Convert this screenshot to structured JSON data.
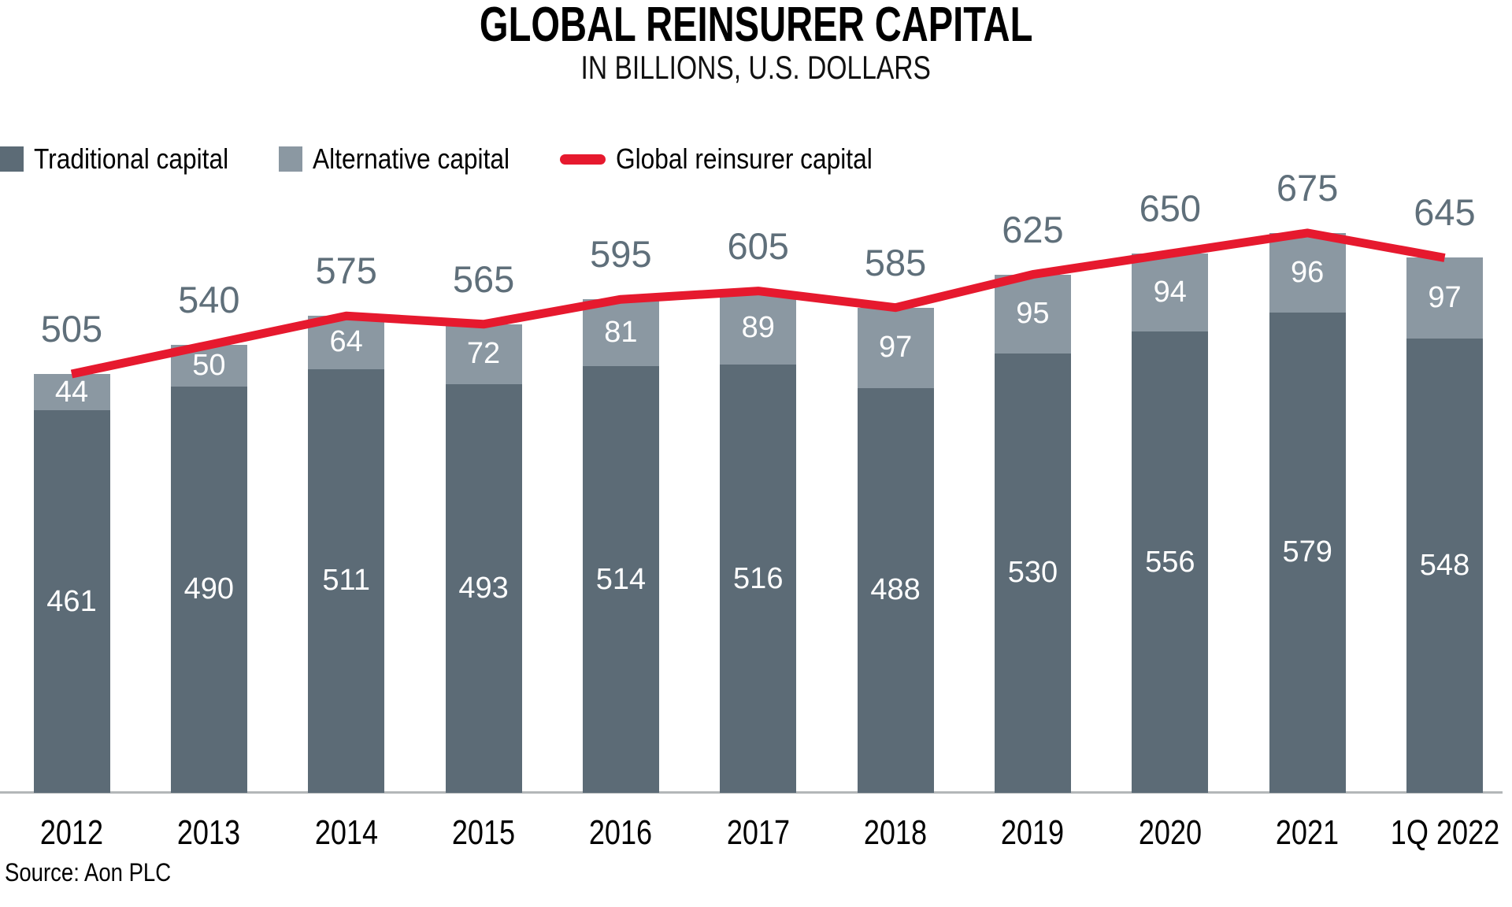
{
  "title": "GLOBAL REINSURER CAPITAL",
  "subtitle": "IN BILLIONS, U.S. DOLLARS",
  "source": "Source: Aon PLC",
  "colors": {
    "traditional": "#5c6b76",
    "alternative": "#8b98a2",
    "line": "#e6192e",
    "total_label": "#5f6f7a",
    "axis": "#b3b7b9",
    "bar_value_text": "#ffffff",
    "background": "#ffffff",
    "text": "#000000"
  },
  "legend": {
    "items": [
      {
        "label": "Traditional capital",
        "swatch": "square",
        "color_key": "traditional"
      },
      {
        "label": "Alternative capital",
        "swatch": "square",
        "color_key": "alternative"
      },
      {
        "label": "Global reinsurer capital",
        "swatch": "line",
        "color_key": "line"
      }
    ]
  },
  "chart_data": {
    "type": "bar",
    "stacked": true,
    "title": "GLOBAL REINSURER CAPITAL",
    "subtitle": "IN BILLIONS, U.S. DOLLARS",
    "categories": [
      "2012",
      "2013",
      "2014",
      "2015",
      "2016",
      "2017",
      "2018",
      "2019",
      "2020",
      "2021",
      "1Q 2022"
    ],
    "series": [
      {
        "name": "Traditional capital",
        "values": [
          461,
          490,
          511,
          493,
          514,
          516,
          488,
          530,
          556,
          579,
          548
        ]
      },
      {
        "name": "Alternative capital",
        "values": [
          44,
          50,
          64,
          72,
          81,
          89,
          97,
          95,
          94,
          96,
          97
        ]
      }
    ],
    "line_series": {
      "name": "Global reinsurer capital",
      "values": [
        505,
        540,
        575,
        565,
        595,
        605,
        585,
        625,
        650,
        675,
        645
      ]
    },
    "total_labels": [
      505,
      540,
      575,
      565,
      595,
      605,
      585,
      625,
      650,
      675,
      645
    ],
    "xlabel": "",
    "ylabel": "",
    "ylim": [
      0,
      700
    ],
    "grid": false,
    "y_axis_shown": false,
    "legend_position": "top-left",
    "value_labels": "segment values in white inside bars; totals in gray above bars"
  }
}
